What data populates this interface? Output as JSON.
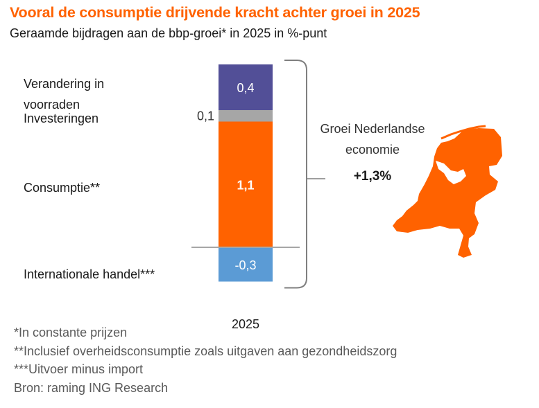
{
  "header": {
    "title": "Vooral de consumptie drijvende kracht achter groei in 2025",
    "subtitle": "Geraamde bijdragen aan de bbp-groei* in 2025 in %-punt"
  },
  "chart_data": {
    "type": "bar",
    "stacked": true,
    "title": "Vooral de consumptie drijvende kracht achter groei in 2025",
    "subtitle": "Geraamde bijdragen aan de bbp-groei* in 2025 in %-punt",
    "categories": [
      "2025"
    ],
    "xlabel": "",
    "ylabel": "",
    "ylim": [
      -0.3,
      1.6
    ],
    "grid": false,
    "legend": "left",
    "series": [
      {
        "name": "Internationale  handel***",
        "values": [
          -0.3
        ],
        "label": "-0,3",
        "color": "#5b9bd5"
      },
      {
        "name": "Consumptie**",
        "values": [
          1.1
        ],
        "label": "1,1",
        "color": "#ff6200"
      },
      {
        "name": "Investeringen",
        "values": [
          0.1
        ],
        "label": "0,1",
        "color": "#a6a6a6"
      },
      {
        "name": "Verandering in voorraden",
        "values": [
          0.4
        ],
        "label": "0,4",
        "color": "#524f97"
      }
    ],
    "annotation": {
      "text_line1": "Groei Nederlandse",
      "text_line2": "economie",
      "value": "+1,3%",
      "total": 1.3
    }
  },
  "labels": {
    "voorraden_line1": "Verandering in",
    "voorraden_line2": "voorraden",
    "investeringen": "Investeringen",
    "consumptie": "Consumptie**",
    "handel": "Internationale  handel***",
    "year": "2025"
  },
  "footnotes": [
    "*In constante prijzen",
    "**Inclusief overheidsconsumptie zoals uitgaven aan gezondheidszorg",
    "***Uitvoer minus import",
    "Bron: raming ING Research"
  ],
  "colors": {
    "accent": "#ff6200"
  }
}
